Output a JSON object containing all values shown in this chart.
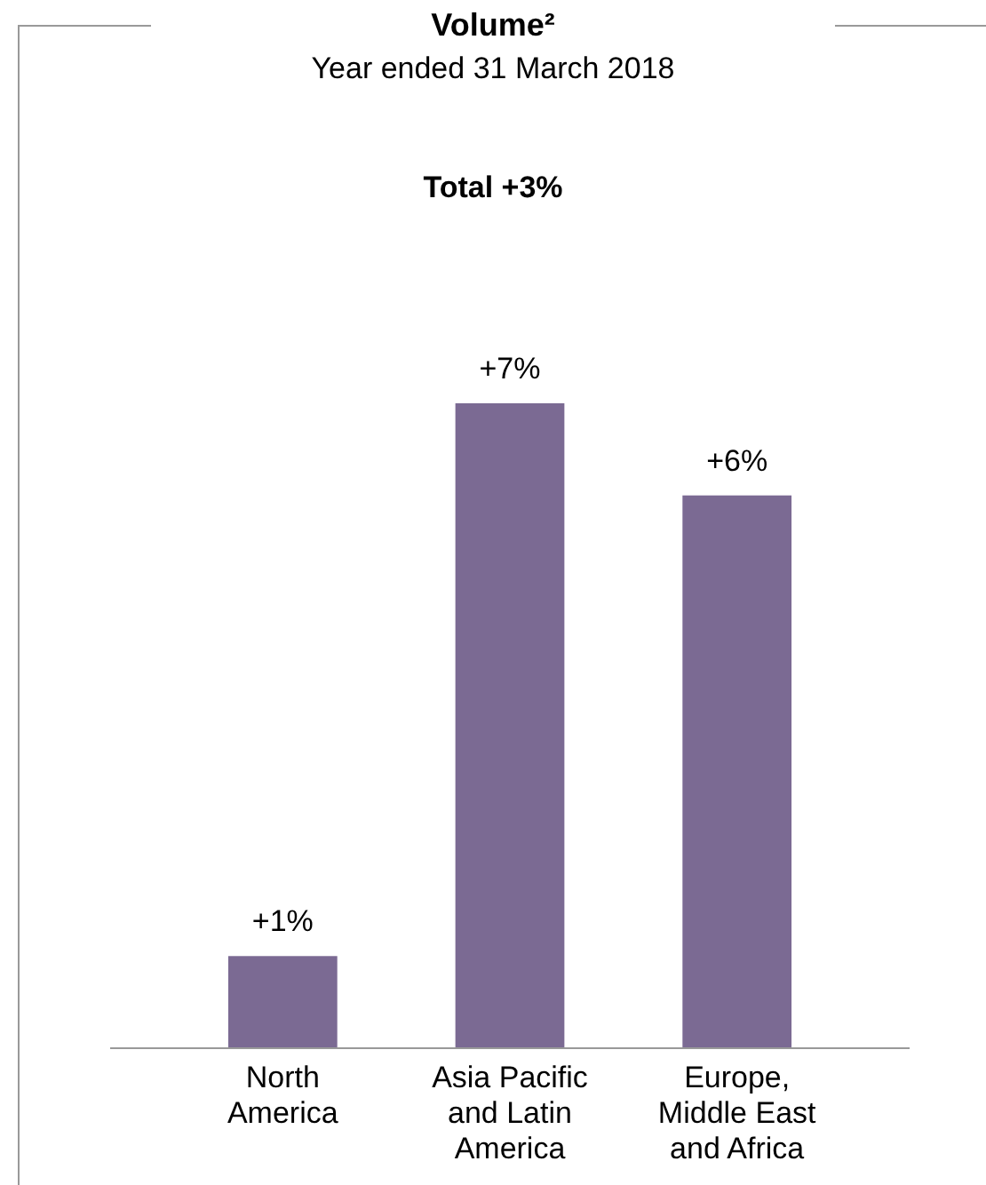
{
  "chart_data": {
    "type": "bar",
    "title": "Volume²",
    "subtitle": "Year ended 31 March 2018",
    "annotations": [
      "Total +3%"
    ],
    "categories": [
      "North America",
      "Asia Pacific and Latin America",
      "Europe, Middle East and Africa"
    ],
    "values": [
      1,
      7,
      6
    ],
    "value_labels": [
      "+1%",
      "+7%",
      "+6%"
    ],
    "color": "#7b6a93",
    "ylim": [
      0,
      7
    ]
  }
}
